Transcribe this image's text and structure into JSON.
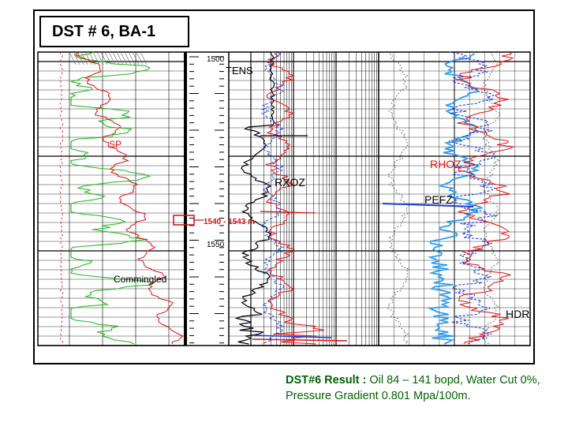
{
  "slide": {
    "title": "DST # 6, BA-1",
    "zone_note": "Commingled",
    "interval_label": "1540 - 1543 m",
    "result": {
      "label": "DST#6 Result :",
      "text": "Oil 84 – 141 bopd, Water Cut 0%, Pressure Gradient 0.801 Mpa/100m."
    }
  },
  "log": {
    "depth_labels": [
      "1500",
      "1550"
    ],
    "curve_labels": {
      "tens": "TENS",
      "rxoz": "RXOZ",
      "sp": "SP",
      "rhoz": "RHOZ",
      "pefz": "PEFZ",
      "hdr": "HDR"
    },
    "colors": {
      "green": "#1fb81f",
      "red": "#e01010",
      "blue": "#1a3fd8",
      "lightblue": "#2a9cf0",
      "black": "#000000",
      "grid": "#000000",
      "interval": "#d01010"
    }
  }
}
